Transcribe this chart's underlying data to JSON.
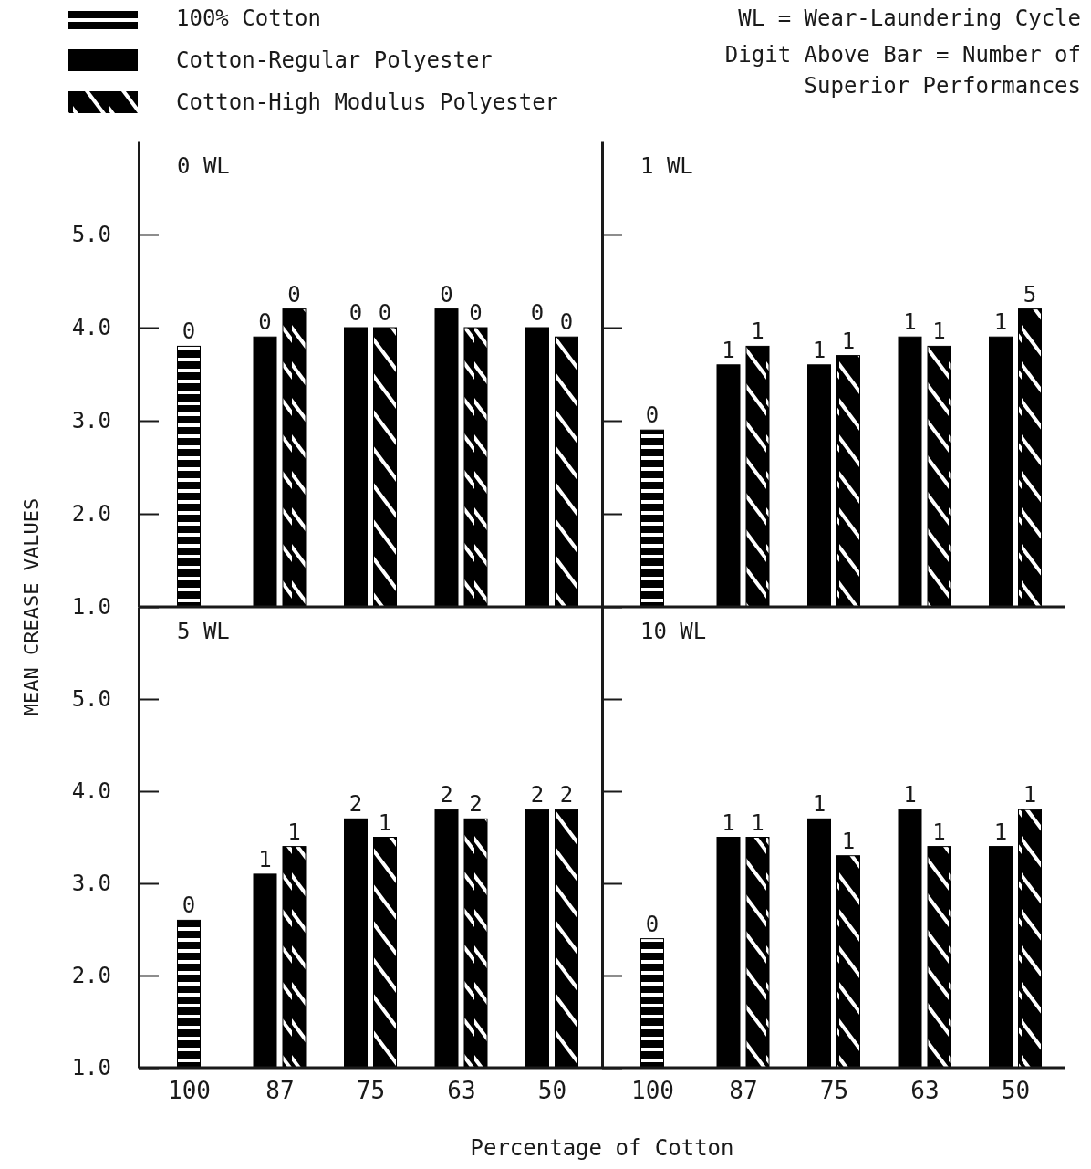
{
  "chart_data": [
    {
      "type": "bar",
      "title": "0 WL",
      "ylabel": "MEAN CREASE VALUES",
      "legend": "top left",
      "tick_labels": "y",
      "categories": [
        "100",
        "87",
        "75",
        "63",
        "50"
      ],
      "ylim": [
        1,
        6
      ],
      "yticks": [
        {
          "value": 1,
          "label": "1.0"
        },
        {
          "value": 2,
          "label": "2.0"
        },
        {
          "value": 3,
          "label": "3.0"
        },
        {
          "value": 4,
          "label": "4.0"
        },
        {
          "value": 5,
          "label": "5.0"
        }
      ],
      "annotations": [
        "WL = Wear-Laundering Cycle",
        "Digit Above Bar = Number of Superior Performances",
        {
          "text": "0",
          "x": "100",
          "y": 3.8
        },
        {
          "text": "0",
          "x": "87",
          "y": 3.9
        },
        {
          "text": "0",
          "x": "87",
          "y": 4.2
        },
        {
          "text": "0",
          "x": "75",
          "y": 4.0
        },
        {
          "text": "0",
          "x": "75",
          "y": 4.0
        },
        {
          "text": "0",
          "x": "63",
          "y": 4.2
        },
        {
          "text": "0",
          "x": "63",
          "y": 4.0
        },
        {
          "text": "0",
          "x": "50",
          "y": 4.0
        },
        {
          "text": "0",
          "x": "50",
          "y": 3.9
        }
      ],
      "series": [
        {
          "name": "100% Cotton",
          "color": "#000000",
          "values": [
            3.8,
            null,
            null,
            null,
            null
          ]
        },
        {
          "name": "Cotton-Regular Polyester",
          "color": "#000000",
          "values": [
            null,
            3.9,
            4.0,
            4.2,
            4.0
          ]
        },
        {
          "name": "Cotton-High Modulus Polyester",
          "color": "#000000",
          "values": [
            null,
            4.2,
            4.0,
            4.0,
            3.9
          ]
        }
      ]
    },
    {
      "type": "bar",
      "title": "1 WL",
      "tick_labels": false,
      "categories": [
        "100",
        "87",
        "75",
        "63",
        "50"
      ],
      "ylim": [
        1,
        6
      ],
      "yticks": [
        {
          "value": 1,
          "label": null
        },
        {
          "value": 2,
          "label": null
        },
        {
          "value": 3,
          "label": null
        },
        {
          "value": 4,
          "label": null
        },
        {
          "value": 5,
          "label": null
        }
      ],
      "annotations": [
        {
          "text": "0",
          "x": "100",
          "y": 2.9
        },
        {
          "text": "1",
          "x": "87",
          "y": 3.6
        },
        {
          "text": "1",
          "x": "87",
          "y": 3.8
        },
        {
          "text": "1",
          "x": "75",
          "y": 3.6
        },
        {
          "text": "1",
          "x": "75",
          "y": 3.7
        },
        {
          "text": "1",
          "x": "63",
          "y": 3.9
        },
        {
          "text": "1",
          "x": "63",
          "y": 3.8
        },
        {
          "text": "1",
          "x": "50",
          "y": 3.9
        },
        {
          "text": "5",
          "x": "50",
          "y": 4.2
        }
      ],
      "series": [
        {
          "color": "#000000",
          "values": [
            2.9,
            null,
            null,
            null,
            null
          ]
        },
        {
          "color": "#000000",
          "values": [
            null,
            3.6,
            3.6,
            3.9,
            3.9
          ]
        },
        {
          "color": "#000000",
          "values": [
            null,
            3.8,
            3.7,
            3.8,
            4.2
          ]
        }
      ]
    },
    {
      "type": "bar",
      "title": "5 WL",
      "xlabel": "Percentage of Cotton",
      "categories": [
        "100",
        "87",
        "75",
        "63",
        "50"
      ],
      "ylim": [
        1,
        6
      ],
      "yticks": [
        {
          "value": 1,
          "label": "1.0"
        },
        {
          "value": 2,
          "label": "2.0"
        },
        {
          "value": 3,
          "label": "3.0"
        },
        {
          "value": 4,
          "label": "4.0"
        },
        {
          "value": 5,
          "label": "5.0"
        }
      ],
      "annotations": [
        {
          "text": "0",
          "x": "100",
          "y": 2.6
        },
        {
          "text": "1",
          "x": "87",
          "y": 3.1
        },
        {
          "text": "1",
          "x": "87",
          "y": 3.4
        },
        {
          "text": "2",
          "x": "75",
          "y": 3.7
        },
        {
          "text": "1",
          "x": "75",
          "y": 3.5
        },
        {
          "text": "2",
          "x": "63",
          "y": 3.8
        },
        {
          "text": "2",
          "x": "63",
          "y": 3.7
        },
        {
          "text": "2",
          "x": "50",
          "y": 3.8
        },
        {
          "text": "2",
          "x": "50",
          "y": 3.8
        }
      ],
      "series": [
        {
          "color": "#000000",
          "values": [
            2.6,
            null,
            null,
            null,
            null
          ]
        },
        {
          "color": "#000000",
          "values": [
            null,
            3.1,
            3.7,
            3.8,
            3.8
          ]
        },
        {
          "color": "#000000",
          "values": [
            null,
            3.4,
            3.5,
            3.7,
            3.8
          ]
        }
      ]
    },
    {
      "type": "bar",
      "title": "10 WL",
      "tick_labels": "x",
      "categories": [
        "100",
        "87",
        "75",
        "63",
        "50"
      ],
      "ylim": [
        1,
        6
      ],
      "yticks": [
        {
          "value": 1,
          "label": null
        },
        {
          "value": 2,
          "label": null
        },
        {
          "value": 3,
          "label": null
        },
        {
          "value": 4,
          "label": null
        },
        {
          "value": 5,
          "label": null
        }
      ],
      "annotations": [
        {
          "text": "0",
          "x": "100",
          "y": 2.4
        },
        {
          "text": "1",
          "x": "87",
          "y": 3.5
        },
        {
          "text": "1",
          "x": "87",
          "y": 3.5
        },
        {
          "text": "1",
          "x": "75",
          "y": 3.7
        },
        {
          "text": "1",
          "x": "75",
          "y": 3.3
        },
        {
          "text": "1",
          "x": "63",
          "y": 3.8
        },
        {
          "text": "1",
          "x": "63",
          "y": 3.4
        },
        {
          "text": "1",
          "x": "50",
          "y": 3.4
        },
        {
          "text": "1",
          "x": "50",
          "y": 3.8
        }
      ],
      "series": [
        {
          "color": "#000000",
          "values": [
            2.4,
            null,
            null,
            null,
            null
          ]
        },
        {
          "color": "#000000",
          "values": [
            null,
            3.5,
            3.7,
            3.8,
            3.4
          ]
        },
        {
          "color": "#000000",
          "values": [
            null,
            3.5,
            3.3,
            3.4,
            3.8
          ]
        }
      ]
    }
  ]
}
